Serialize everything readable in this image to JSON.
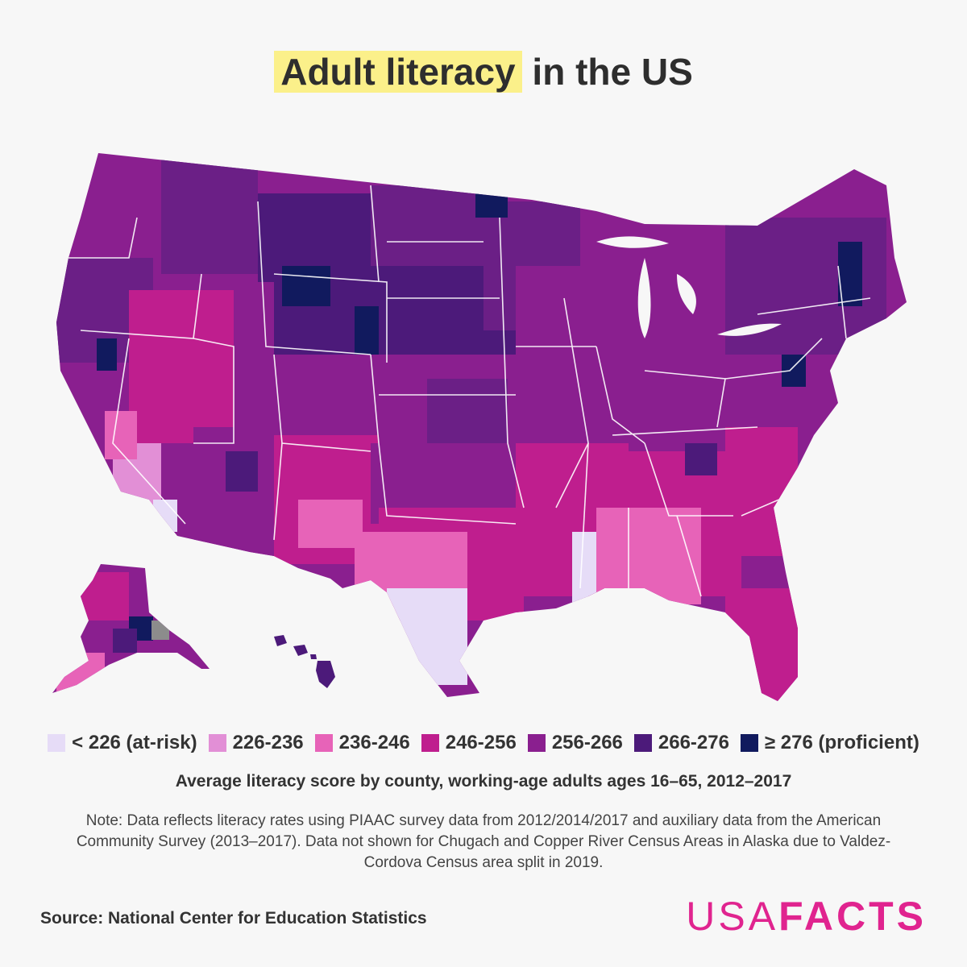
{
  "header": {
    "title_highlight": "Adult literacy",
    "title_rest": " in the US"
  },
  "legend": {
    "items": [
      {
        "label": "< 226 (at-risk)",
        "color": "#e6dcf7"
      },
      {
        "label": "226-236",
        "color": "#e28fd6"
      },
      {
        "label": "236-246",
        "color": "#e763b8"
      },
      {
        "label": "246-256",
        "color": "#bf1e8e"
      },
      {
        "label": "256-266",
        "color": "#8a1f8f"
      },
      {
        "label": "266-276",
        "color": "#4c1a7a"
      },
      {
        "label": "≥ 276 (proficient)",
        "color": "#111a5e"
      }
    ],
    "no_data_color": "#8c8c8c"
  },
  "subtitle": "Average literacy score by county, working-age adults ages 16–65, 2012–2017",
  "note": "Note: Data reflects literacy rates using PIAAC survey data from 2012/2014/2017 and auxiliary data from the American Community Survey (2013–2017). Data not shown for Chugach and Copper River Census Areas in Alaska due to Valdez-Cordova Census area split in 2019.",
  "source": "Source: National Center for Education Statistics",
  "brand": {
    "part1": "USA",
    "part2": "FACTS",
    "color": "#e0248f"
  }
}
